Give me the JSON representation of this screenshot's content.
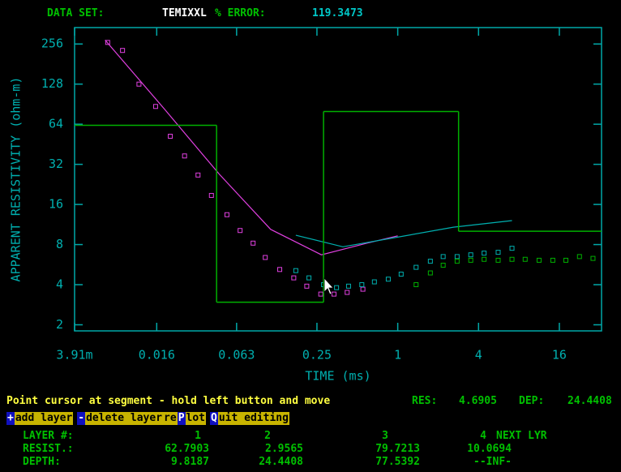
{
  "header": {
    "dataset_label": "DATA SET:",
    "dataset": "TEMIXXL",
    "error_label": "% ERROR:",
    "error": 119.3473
  },
  "chart_data": {
    "type": "log-plot",
    "xlabel": "TIME (ms)",
    "ylabel": "APPARENT RESISTIVITY (ohm-m)",
    "xscale": "log",
    "yscale": "log",
    "axis_color": "#00a8a8",
    "xlim": [
      0.00391,
      33
    ],
    "ylim": [
      1.8,
      340
    ],
    "xticks": [
      {
        "value": 0.00391,
        "label": "3.91m"
      },
      0.016,
      0.063,
      0.25,
      1,
      4,
      16
    ],
    "yticks": [
      2,
      4,
      8,
      16,
      32,
      64,
      128,
      256
    ],
    "series": [
      {
        "style": "markers",
        "color": "#e040e0",
        "x": [
          0.0069,
          0.0089,
          0.0118,
          0.0157,
          0.0202,
          0.0258,
          0.0325,
          0.0409,
          0.0534,
          0.0669,
          0.0836,
          0.103,
          0.132,
          0.168,
          0.21,
          0.267,
          0.335,
          0.42,
          0.55
        ],
        "values": [
          263,
          229,
          128,
          87,
          52,
          37,
          26.6,
          18.7,
          13.4,
          10.2,
          8.2,
          6.4,
          5.2,
          4.5,
          3.9,
          3.4,
          3.4,
          3.5,
          3.7
        ]
      },
      {
        "style": "markers",
        "color": "#00b0b0",
        "x": [
          0.174,
          0.218,
          0.28,
          0.35,
          0.43,
          0.54,
          0.67,
          0.85,
          1.06,
          1.37,
          1.75,
          2.18,
          2.77,
          3.5,
          4.4,
          5.6,
          7.1
        ],
        "values": [
          5.1,
          4.5,
          4.0,
          3.8,
          3.9,
          4.0,
          4.2,
          4.4,
          4.8,
          5.4,
          6.0,
          6.5,
          6.5,
          6.7,
          6.9,
          7.0,
          7.5
        ]
      },
      {
        "style": "markers",
        "color": "#00b000",
        "x": [
          1.37,
          1.75,
          2.18,
          2.77,
          3.5,
          4.4,
          5.6,
          7.1,
          8.9,
          11.3,
          14.3,
          17.9,
          22.6,
          28.5
        ],
        "values": [
          4.0,
          4.9,
          5.6,
          6.0,
          6.1,
          6.2,
          6.1,
          6.2,
          6.2,
          6.1,
          6.1,
          6.1,
          6.5,
          6.3
        ]
      },
      {
        "style": "line",
        "color": "#e040e0",
        "x": [
          0.0066,
          0.0183,
          0.0468,
          0.113,
          0.27,
          0.59,
          1.0
        ],
        "values": [
          274,
          83,
          27,
          10.4,
          6.7,
          8.2,
          9.3
        ]
      },
      {
        "style": "line",
        "color": "#00b0b0",
        "x": [
          0.174,
          0.39,
          1.0,
          2.6,
          7.1
        ],
        "values": [
          9.4,
          7.7,
          9.1,
          10.8,
          12.1
        ]
      },
      {
        "style": "step",
        "color": "#00b000",
        "x": [
          0.00391,
          0.0447,
          0.28,
          2.84
        ],
        "values": [
          62.7903,
          2.9565,
          79.7213,
          10.0694
        ]
      }
    ]
  },
  "status": {
    "message": "Point cursor at segment - hold left button and move",
    "res_label": "RES:",
    "res": 4.6905,
    "dep_label": "DEP:",
    "dep": 24.4408
  },
  "menu": [
    {
      "text": "+",
      "key": true
    },
    {
      "text": "add layer",
      "key": false
    },
    {
      "text": "-",
      "key": true
    },
    {
      "text": "delete layer",
      "key": false
    },
    {
      "text": "re",
      "key": false
    },
    {
      "text": "P",
      "key": true
    },
    {
      "text": "lot",
      "key": false
    },
    {
      "text": "Q",
      "key": true
    },
    {
      "text": "uit editing",
      "key": false
    }
  ],
  "table": {
    "rows": [
      [
        "LAYER #:",
        1,
        2,
        3,
        4,
        "NEXT LYR"
      ],
      [
        "RESIST.:",
        62.7903,
        2.9565,
        79.7213,
        10.0694
      ],
      [
        "DEPTH:",
        9.8187,
        24.4408,
        77.5392,
        "--INF-"
      ]
    ]
  }
}
